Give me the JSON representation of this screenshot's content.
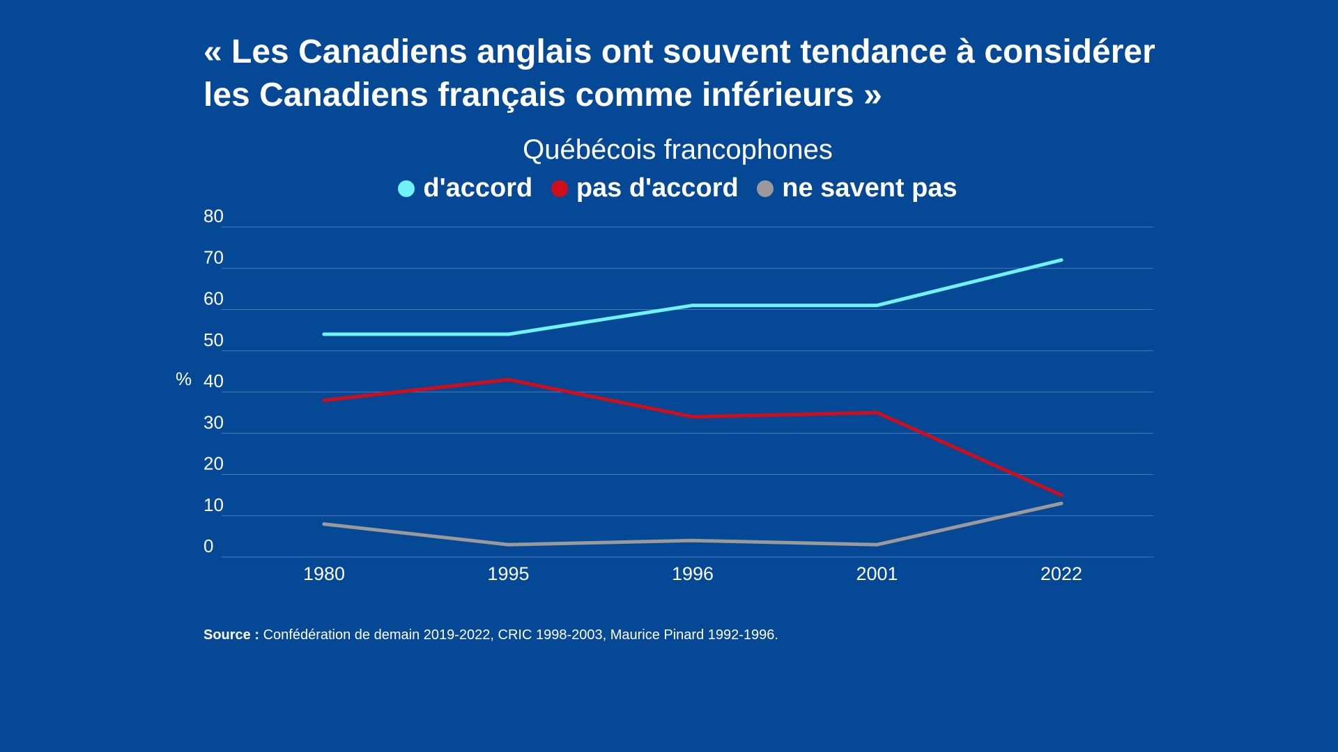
{
  "title_line1": "« Les Canadiens anglais ont souvent tendance à considérer",
  "title_line2": "les Canadiens français comme inférieurs »",
  "source_label": "Source :",
  "source_text": "Confédération de demain 2019-2022, CRIC 1998-2003, Maurice Pinard 1992-1996.",
  "colors": {
    "background": "#054896",
    "gridline": "#4a7bc0",
    "text": "#ffffff"
  },
  "chart_data": {
    "type": "line",
    "title": "Québécois francophones",
    "xlabel": "",
    "ylabel": "%",
    "categories": [
      "1980",
      "1995",
      "1996",
      "2001",
      "2022"
    ],
    "ylim": [
      0,
      80
    ],
    "yticks": [
      "0",
      "10",
      "20",
      "30",
      "40",
      "50",
      "60",
      "70",
      "80"
    ],
    "grid": true,
    "legend_position": "top-center",
    "series": [
      {
        "name": "d'accord",
        "color": "#6ff3f8",
        "values": [
          54,
          54,
          61,
          61,
          72
        ]
      },
      {
        "name": "pas d'accord",
        "color": "#d20d1b",
        "values": [
          38,
          43,
          34,
          35,
          15
        ]
      },
      {
        "name": "ne savent pas",
        "color": "#9a9a9a",
        "values": [
          8,
          3,
          4,
          3,
          13
        ]
      }
    ]
  }
}
